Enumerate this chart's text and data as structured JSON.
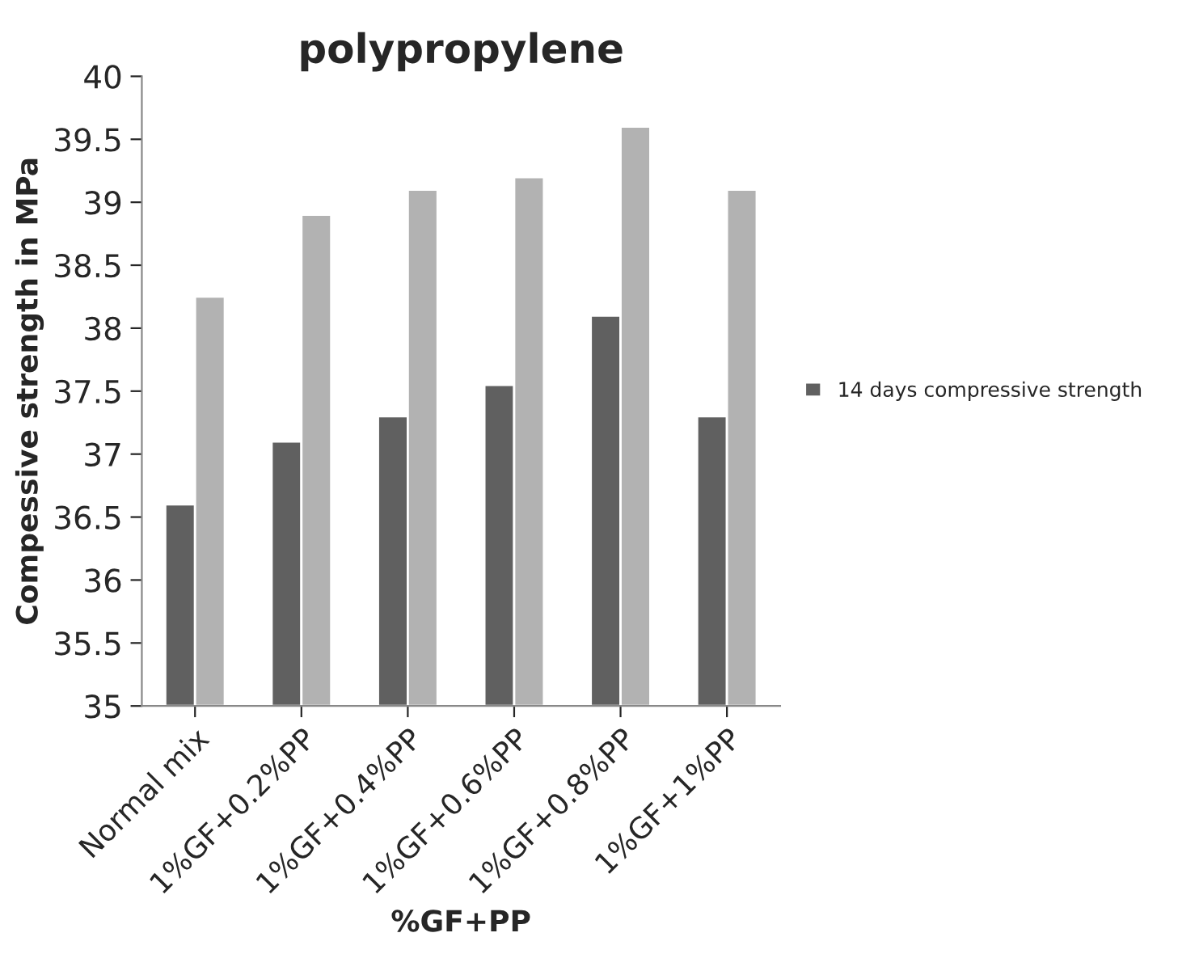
{
  "chart_data": {
    "type": "bar",
    "title": "polypropylene",
    "xlabel": "%GF+PP",
    "ylabel": "Compessive strength in MPa",
    "categories": [
      "Normal mix",
      "1%GF+0.2%PP",
      "1%GF+0.4%PP",
      "1%GF+0.6%PP",
      "1%GF+0.8%PP",
      "1%GF+1%PP"
    ],
    "series": [
      {
        "name": "14 days compressive strength",
        "color": "#606060",
        "values": [
          36.6,
          37.1,
          37.3,
          37.55,
          38.1,
          37.3
        ]
      },
      {
        "color": "#b2b2b2",
        "values": [
          38.25,
          38.9,
          39.1,
          39.2,
          39.6,
          39.1
        ]
      }
    ],
    "ylim": [
      35,
      40
    ],
    "yticks": [
      35,
      35.5,
      36,
      36.5,
      37,
      37.5,
      38,
      38.5,
      39,
      39.5,
      40
    ],
    "grid": false,
    "legend": "right"
  }
}
